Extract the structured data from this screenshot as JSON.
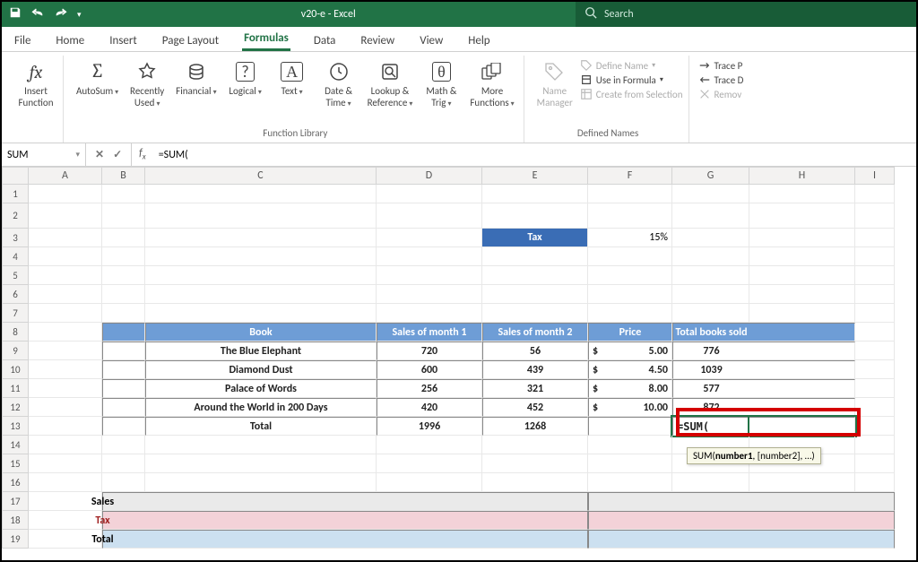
{
  "titlebar": {
    "title": "v20-e  -  Excel",
    "search_placeholder": "Search"
  },
  "tabs": [
    "File",
    "Home",
    "Insert",
    "Page Layout",
    "Formulas",
    "Data",
    "Review",
    "View",
    "Help"
  ],
  "active_tab": "Formulas",
  "ribbon": {
    "insert_fn": "Insert\nFunction",
    "library": {
      "autosum": "AutoSum",
      "recent": "Recently\nUsed",
      "financial": "Financial",
      "logical": "Logical",
      "text": "Text",
      "datetime": "Date &\nTime",
      "lookup": "Lookup &\nReference",
      "math": "Math &\nTrig",
      "more": "More\nFunctions",
      "label": "Function Library"
    },
    "names": {
      "manager": "Name\nManager",
      "define": "Define Name",
      "use": "Use in Formula",
      "create": "Create from Selection",
      "label": "Defined Names"
    },
    "audit": {
      "tracep": "Trace P",
      "traced": "Trace D",
      "remove": "Remov"
    }
  },
  "fbar": {
    "name": "SUM",
    "formula": "=SUM("
  },
  "cols": [
    "A",
    "B",
    "C",
    "D",
    "E",
    "F",
    "G",
    "H",
    "I"
  ],
  "colw": {
    "A": 82,
    "B": 48,
    "C": 258,
    "D": 118,
    "E": 118,
    "F": 94,
    "G": 86,
    "H": 118,
    "I": 44
  },
  "rows": 19,
  "tax": {
    "label": "Tax",
    "value": "15%"
  },
  "table": {
    "headers": {
      "book": "Book",
      "m1": "Sales of month 1",
      "m2": "Sales of month 2",
      "price": "Price",
      "total": "Total books sold"
    },
    "rows": [
      {
        "book": "The Blue Elephant",
        "m1": "720",
        "m2": "56",
        "price_sym": "$",
        "price": "5.00",
        "total": "776"
      },
      {
        "book": "Diamond Dust",
        "m1": "600",
        "m2": "439",
        "price_sym": "$",
        "price": "4.50",
        "total": "1039"
      },
      {
        "book": "Palace of Words",
        "m1": "256",
        "m2": "321",
        "price_sym": "$",
        "price": "8.00",
        "total": "577"
      },
      {
        "book": "Around the World in 200 Days",
        "m1": "420",
        "m2": "452",
        "price_sym": "$",
        "price": "10.00",
        "total": "872"
      }
    ],
    "totals": {
      "label": "Total",
      "m1": "1996",
      "m2": "1268"
    }
  },
  "editing": {
    "cell_text": "=SUM(",
    "tooltip": "SUM(number1, [number2], …)"
  },
  "summary": {
    "sales": "Sales",
    "tax": "Tax",
    "total": "Total"
  },
  "colors": {
    "titlebar": "#217346",
    "thead": "#6e9dd6",
    "tax": "#3a6db5",
    "red": "#d40000"
  }
}
